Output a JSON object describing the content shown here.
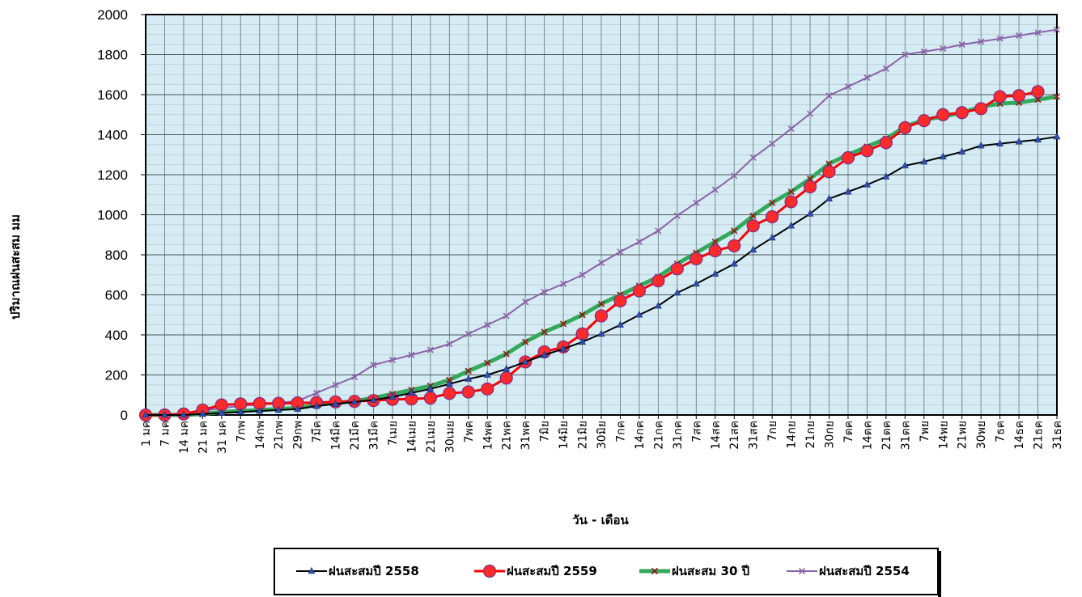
{
  "chart_data": {
    "type": "line",
    "title": "",
    "xlabel": "วัน - เดือน",
    "ylabel": "ปริมาณฝนสะสม  มม",
    "ylim": [
      0,
      2000
    ],
    "yticks": [
      0,
      200,
      400,
      600,
      800,
      1000,
      1200,
      1400,
      1600,
      1800,
      2000
    ],
    "grid": true,
    "legend_position": "bottom",
    "plot_background": "#d6ecf4",
    "categories": [
      "1 มค",
      "7 มค",
      "14 มค",
      "21 มค",
      "31 มค",
      "7กพ",
      "14กพ",
      "21กพ",
      "29กพ",
      "7มีค",
      "14มีค",
      "21มีค",
      "31มีค",
      "7เมย",
      "14เมย",
      "21เมย",
      "30เมย",
      "7พค",
      "14พค",
      "21พค",
      "31พค",
      "7มิย",
      "14มิย",
      "21มิย",
      "30มิย",
      "7กค",
      "14กค",
      "21กค",
      "31กค",
      "7สค",
      "14สค",
      "21สค",
      "31สค",
      "7กย",
      "14กย",
      "21กย",
      "30กย",
      "7ตค",
      "14ตค",
      "21ตค",
      "31ตค",
      "7พย",
      "14พย",
      "21พย",
      "30พย",
      "7ธค",
      "14ธค",
      "21ธค",
      "31ธค"
    ],
    "series": [
      {
        "name": "ฝนสะสมปี 2558",
        "color": "#000000",
        "marker": "triangle",
        "width": 2,
        "values": [
          0,
          0,
          0,
          5,
          10,
          15,
          20,
          25,
          30,
          45,
          55,
          65,
          75,
          90,
          110,
          130,
          155,
          180,
          200,
          230,
          265,
          300,
          330,
          365,
          405,
          450,
          500,
          545,
          610,
          655,
          705,
          755,
          825,
          885,
          945,
          1005,
          1080,
          1115,
          1150,
          1190,
          1245,
          1265,
          1290,
          1315,
          1345,
          1355,
          1365,
          1375,
          1390
        ]
      },
      {
        "name": "ฝนสะสมปี 2559",
        "color": "#ff0000",
        "marker": "circle",
        "width": 3,
        "values": [
          0,
          0,
          5,
          25,
          50,
          55,
          57,
          58,
          60,
          62,
          65,
          68,
          72,
          78,
          80,
          85,
          108,
          115,
          130,
          185,
          265,
          315,
          340,
          405,
          495,
          570,
          620,
          670,
          730,
          780,
          820,
          845,
          945,
          990,
          1065,
          1140,
          1215,
          1285,
          1320,
          1360,
          1435,
          1470,
          1500,
          1510,
          1530,
          1590,
          1595,
          1615,
          null
        ]
      },
      {
        "name": "ฝนสะสม 30 ปี",
        "color": "#33a95c",
        "marker": "x",
        "width": 5,
        "values": [
          0,
          0,
          0,
          5,
          15,
          20,
          25,
          30,
          35,
          50,
          60,
          70,
          85,
          105,
          125,
          145,
          175,
          220,
          260,
          305,
          365,
          415,
          455,
          500,
          555,
          600,
          645,
          690,
          755,
          810,
          865,
          920,
          995,
          1060,
          1115,
          1180,
          1255,
          1300,
          1340,
          1380,
          1440,
          1475,
          1490,
          1510,
          1540,
          1555,
          1560,
          1575,
          1590
        ]
      },
      {
        "name": "ฝนสะสมปี 2554",
        "color": "#8c62a8",
        "marker": "x",
        "width": 2,
        "values": [
          0,
          2,
          5,
          20,
          35,
          45,
          52,
          60,
          70,
          110,
          150,
          190,
          250,
          275,
          300,
          325,
          355,
          405,
          450,
          495,
          565,
          615,
          655,
          700,
          760,
          815,
          865,
          920,
          995,
          1060,
          1125,
          1195,
          1285,
          1355,
          1430,
          1505,
          1595,
          1640,
          1685,
          1730,
          1800,
          1815,
          1830,
          1850,
          1865,
          1880,
          1895,
          1910,
          1925
        ]
      }
    ]
  }
}
